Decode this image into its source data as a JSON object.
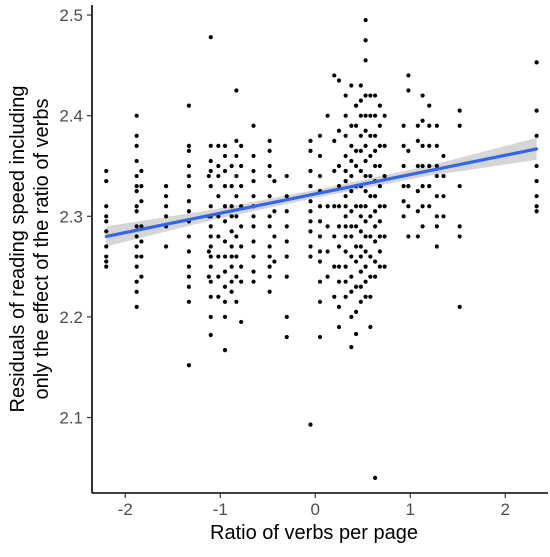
{
  "chart_data": {
    "type": "scatter",
    "xlabel": "Ratio of verbs per page",
    "ylabel_lines": [
      "Residuals of reading speed including",
      "only the effect of the ratio of verbs"
    ],
    "xlim": [
      -2.35,
      2.45
    ],
    "ylim": [
      2.025,
      2.51
    ],
    "x_ticks": [
      -2,
      -1,
      0,
      1,
      2
    ],
    "x_tick_labels": [
      "-2",
      "-1",
      "0",
      "1",
      "2"
    ],
    "y_ticks": [
      2.1,
      2.2,
      2.3,
      2.4,
      2.5
    ],
    "y_tick_labels": [
      "2.1",
      "2.2",
      "2.3",
      "2.4",
      "2.5"
    ],
    "grid": false,
    "point_color": "#000000",
    "regression": {
      "color": "#3366ee",
      "band_color": "#c8c8c8",
      "x": [
        -2.2,
        2.33
      ],
      "y": [
        2.28,
        2.367
      ],
      "band_half_width": [
        0.01,
        0.005,
        0.004,
        0.005,
        0.011
      ]
    },
    "points": [
      [
        -2.2,
        2.345
      ],
      [
        -2.2,
        2.335
      ],
      [
        -2.2,
        2.31
      ],
      [
        -2.2,
        2.3
      ],
      [
        -2.2,
        2.295
      ],
      [
        -2.2,
        2.285
      ],
      [
        -2.2,
        2.27
      ],
      [
        -2.2,
        2.26
      ],
      [
        -2.2,
        2.255
      ],
      [
        -2.2,
        2.25
      ],
      [
        -1.88,
        2.4
      ],
      [
        -1.88,
        2.38
      ],
      [
        -1.88,
        2.37
      ],
      [
        -1.88,
        2.355
      ],
      [
        -1.88,
        2.34
      ],
      [
        -1.88,
        2.33
      ],
      [
        -1.88,
        2.325
      ],
      [
        -1.88,
        2.31
      ],
      [
        -1.88,
        2.305
      ],
      [
        -1.88,
        2.29
      ],
      [
        -1.88,
        2.28
      ],
      [
        -1.88,
        2.27
      ],
      [
        -1.88,
        2.26
      ],
      [
        -1.88,
        2.25
      ],
      [
        -1.88,
        2.235
      ],
      [
        -1.88,
        2.225
      ],
      [
        -1.88,
        2.21
      ],
      [
        -1.83,
        2.345
      ],
      [
        -1.83,
        2.33
      ],
      [
        -1.83,
        2.315
      ],
      [
        -1.83,
        2.29
      ],
      [
        -1.83,
        2.275
      ],
      [
        -1.83,
        2.26
      ],
      [
        -1.83,
        2.24
      ],
      [
        -1.57,
        2.33
      ],
      [
        -1.57,
        2.32
      ],
      [
        -1.57,
        2.31
      ],
      [
        -1.57,
        2.3
      ],
      [
        -1.57,
        2.29
      ],
      [
        -1.57,
        2.27
      ],
      [
        -1.33,
        2.41
      ],
      [
        -1.33,
        2.37
      ],
      [
        -1.33,
        2.365
      ],
      [
        -1.33,
        2.35
      ],
      [
        -1.33,
        2.34
      ],
      [
        -1.33,
        2.33
      ],
      [
        -1.33,
        2.315
      ],
      [
        -1.33,
        2.305
      ],
      [
        -1.33,
        2.295
      ],
      [
        -1.33,
        2.28
      ],
      [
        -1.33,
        2.265
      ],
      [
        -1.33,
        2.25
      ],
      [
        -1.33,
        2.24
      ],
      [
        -1.33,
        2.23
      ],
      [
        -1.33,
        2.215
      ],
      [
        -1.33,
        2.152
      ],
      [
        -1.12,
        2.34
      ],
      [
        -1.12,
        2.3
      ],
      [
        -1.12,
        2.265
      ],
      [
        -1.12,
        2.24
      ],
      [
        -1.1,
        2.478
      ],
      [
        -1.1,
        2.37
      ],
      [
        -1.1,
        2.355
      ],
      [
        -1.1,
        2.345
      ],
      [
        -1.1,
        2.33
      ],
      [
        -1.1,
        2.31
      ],
      [
        -1.1,
        2.3
      ],
      [
        -1.1,
        2.29
      ],
      [
        -1.1,
        2.28
      ],
      [
        -1.1,
        2.27
      ],
      [
        -1.1,
        2.26
      ],
      [
        -1.1,
        2.25
      ],
      [
        -1.1,
        2.235
      ],
      [
        -1.1,
        2.22
      ],
      [
        -1.1,
        2.2
      ],
      [
        -1.1,
        2.182
      ],
      [
        -1.02,
        2.37
      ],
      [
        -1.02,
        2.35
      ],
      [
        -1.02,
        2.34
      ],
      [
        -1.02,
        2.32
      ],
      [
        -1.02,
        2.3
      ],
      [
        -1.02,
        2.28
      ],
      [
        -1.02,
        2.26
      ],
      [
        -1.02,
        2.24
      ],
      [
        -1.02,
        2.22
      ],
      [
        -0.95,
        2.37
      ],
      [
        -0.95,
        2.36
      ],
      [
        -0.95,
        2.345
      ],
      [
        -0.95,
        2.33
      ],
      [
        -0.95,
        2.31
      ],
      [
        -0.95,
        2.295
      ],
      [
        -0.95,
        2.275
      ],
      [
        -0.95,
        2.26
      ],
      [
        -0.95,
        2.245
      ],
      [
        -0.95,
        2.23
      ],
      [
        -0.95,
        2.215
      ],
      [
        -0.95,
        2.2
      ],
      [
        -0.95,
        2.167
      ],
      [
        -0.88,
        2.35
      ],
      [
        -0.88,
        2.33
      ],
      [
        -0.88,
        2.31
      ],
      [
        -0.88,
        2.3
      ],
      [
        -0.88,
        2.285
      ],
      [
        -0.88,
        2.27
      ],
      [
        -0.88,
        2.26
      ],
      [
        -0.88,
        2.25
      ],
      [
        -0.88,
        2.235
      ],
      [
        -0.88,
        2.225
      ],
      [
        -0.83,
        2.425
      ],
      [
        -0.83,
        2.375
      ],
      [
        -0.83,
        2.36
      ],
      [
        -0.83,
        2.34
      ],
      [
        -0.83,
        2.32
      ],
      [
        -0.83,
        2.3
      ],
      [
        -0.83,
        2.28
      ],
      [
        -0.83,
        2.26
      ],
      [
        -0.83,
        2.24
      ],
      [
        -0.83,
        2.215
      ],
      [
        -0.78,
        2.37
      ],
      [
        -0.78,
        2.35
      ],
      [
        -0.78,
        2.33
      ],
      [
        -0.78,
        2.31
      ],
      [
        -0.78,
        2.29
      ],
      [
        -0.78,
        2.27
      ],
      [
        -0.78,
        2.25
      ],
      [
        -0.78,
        2.235
      ],
      [
        -0.78,
        2.195
      ],
      [
        -0.65,
        2.39
      ],
      [
        -0.65,
        2.36
      ],
      [
        -0.65,
        2.345
      ],
      [
        -0.65,
        2.335
      ],
      [
        -0.65,
        2.32
      ],
      [
        -0.65,
        2.31
      ],
      [
        -0.65,
        2.3
      ],
      [
        -0.65,
        2.29
      ],
      [
        -0.65,
        2.275
      ],
      [
        -0.65,
        2.26
      ],
      [
        -0.65,
        2.245
      ],
      [
        -0.65,
        2.235
      ],
      [
        -0.48,
        2.375
      ],
      [
        -0.48,
        2.365
      ],
      [
        -0.48,
        2.35
      ],
      [
        -0.48,
        2.34
      ],
      [
        -0.48,
        2.32
      ],
      [
        -0.48,
        2.3
      ],
      [
        -0.48,
        2.29
      ],
      [
        -0.48,
        2.27
      ],
      [
        -0.48,
        2.26
      ],
      [
        -0.48,
        2.25
      ],
      [
        -0.48,
        2.24
      ],
      [
        -0.48,
        2.225
      ],
      [
        -0.43,
        2.335
      ],
      [
        -0.43,
        2.305
      ],
      [
        -0.43,
        2.28
      ],
      [
        -0.43,
        2.255
      ],
      [
        -0.3,
        2.34
      ],
      [
        -0.3,
        2.32
      ],
      [
        -0.3,
        2.305
      ],
      [
        -0.3,
        2.29
      ],
      [
        -0.3,
        2.275
      ],
      [
        -0.3,
        2.26
      ],
      [
        -0.3,
        2.24
      ],
      [
        -0.3,
        2.2
      ],
      [
        -0.3,
        2.18
      ],
      [
        -0.05,
        2.375
      ],
      [
        -0.05,
        2.365
      ],
      [
        -0.05,
        2.345
      ],
      [
        -0.05,
        2.33
      ],
      [
        -0.05,
        2.315
      ],
      [
        -0.05,
        2.305
      ],
      [
        -0.05,
        2.295
      ],
      [
        -0.05,
        2.285
      ],
      [
        -0.05,
        2.27
      ],
      [
        -0.05,
        2.26
      ],
      [
        -0.05,
        2.093
      ],
      [
        0.05,
        2.38
      ],
      [
        0.05,
        2.36
      ],
      [
        0.05,
        2.34
      ],
      [
        0.05,
        2.325
      ],
      [
        0.05,
        2.31
      ],
      [
        0.05,
        2.295
      ],
      [
        0.05,
        2.28
      ],
      [
        0.05,
        2.265
      ],
      [
        0.05,
        2.255
      ],
      [
        0.05,
        2.235
      ],
      [
        0.05,
        2.215
      ],
      [
        0.05,
        2.18
      ],
      [
        0.13,
        2.4
      ],
      [
        0.13,
        2.31
      ],
      [
        0.13,
        2.29
      ],
      [
        0.13,
        2.265
      ],
      [
        0.13,
        2.24
      ],
      [
        0.2,
        2.44
      ],
      [
        0.2,
        2.375
      ],
      [
        0.2,
        2.345
      ],
      [
        0.2,
        2.31
      ],
      [
        0.2,
        2.28
      ],
      [
        0.2,
        2.25
      ],
      [
        0.2,
        2.22
      ],
      [
        0.25,
        2.435
      ],
      [
        0.25,
        2.385
      ],
      [
        0.25,
        2.35
      ],
      [
        0.25,
        2.33
      ],
      [
        0.25,
        2.31
      ],
      [
        0.25,
        2.29
      ],
      [
        0.25,
        2.27
      ],
      [
        0.25,
        2.25
      ],
      [
        0.25,
        2.235
      ],
      [
        0.25,
        2.21
      ],
      [
        0.25,
        2.19
      ],
      [
        0.32,
        2.42
      ],
      [
        0.32,
        2.4
      ],
      [
        0.32,
        2.38
      ],
      [
        0.32,
        2.36
      ],
      [
        0.32,
        2.345
      ],
      [
        0.32,
        2.335
      ],
      [
        0.32,
        2.32
      ],
      [
        0.32,
        2.31
      ],
      [
        0.32,
        2.3
      ],
      [
        0.32,
        2.29
      ],
      [
        0.32,
        2.28
      ],
      [
        0.32,
        2.265
      ],
      [
        0.32,
        2.25
      ],
      [
        0.32,
        2.235
      ],
      [
        0.32,
        2.22
      ],
      [
        0.38,
        2.43
      ],
      [
        0.38,
        2.39
      ],
      [
        0.38,
        2.37
      ],
      [
        0.38,
        2.355
      ],
      [
        0.38,
        2.34
      ],
      [
        0.38,
        2.325
      ],
      [
        0.38,
        2.305
      ],
      [
        0.38,
        2.29
      ],
      [
        0.38,
        2.28
      ],
      [
        0.38,
        2.26
      ],
      [
        0.38,
        2.24
      ],
      [
        0.38,
        2.225
      ],
      [
        0.38,
        2.2
      ],
      [
        0.38,
        2.17
      ],
      [
        0.43,
        2.41
      ],
      [
        0.43,
        2.39
      ],
      [
        0.43,
        2.365
      ],
      [
        0.43,
        2.35
      ],
      [
        0.43,
        2.33
      ],
      [
        0.43,
        2.31
      ],
      [
        0.43,
        2.29
      ],
      [
        0.43,
        2.27
      ],
      [
        0.43,
        2.255
      ],
      [
        0.43,
        2.23
      ],
      [
        0.43,
        2.205
      ],
      [
        0.43,
        2.183
      ],
      [
        0.48,
        2.43
      ],
      [
        0.48,
        2.415
      ],
      [
        0.48,
        2.4
      ],
      [
        0.48,
        2.38
      ],
      [
        0.48,
        2.365
      ],
      [
        0.48,
        2.345
      ],
      [
        0.48,
        2.33
      ],
      [
        0.48,
        2.31
      ],
      [
        0.48,
        2.3
      ],
      [
        0.48,
        2.285
      ],
      [
        0.48,
        2.27
      ],
      [
        0.48,
        2.26
      ],
      [
        0.48,
        2.245
      ],
      [
        0.48,
        2.23
      ],
      [
        0.48,
        2.215
      ],
      [
        0.53,
        2.495
      ],
      [
        0.53,
        2.475
      ],
      [
        0.53,
        2.455
      ],
      [
        0.53,
        2.42
      ],
      [
        0.53,
        2.4
      ],
      [
        0.53,
        2.385
      ],
      [
        0.53,
        2.37
      ],
      [
        0.53,
        2.355
      ],
      [
        0.53,
        2.34
      ],
      [
        0.53,
        2.325
      ],
      [
        0.53,
        2.31
      ],
      [
        0.53,
        2.295
      ],
      [
        0.53,
        2.28
      ],
      [
        0.53,
        2.265
      ],
      [
        0.53,
        2.25
      ],
      [
        0.53,
        2.235
      ],
      [
        0.53,
        2.22
      ],
      [
        0.58,
        2.42
      ],
      [
        0.58,
        2.4
      ],
      [
        0.58,
        2.38
      ],
      [
        0.58,
        2.36
      ],
      [
        0.58,
        2.34
      ],
      [
        0.58,
        2.32
      ],
      [
        0.58,
        2.3
      ],
      [
        0.58,
        2.28
      ],
      [
        0.58,
        2.26
      ],
      [
        0.58,
        2.24
      ],
      [
        0.58,
        2.22
      ],
      [
        0.58,
        2.19
      ],
      [
        0.63,
        2.42
      ],
      [
        0.63,
        2.4
      ],
      [
        0.63,
        2.38
      ],
      [
        0.63,
        2.365
      ],
      [
        0.63,
        2.35
      ],
      [
        0.63,
        2.335
      ],
      [
        0.63,
        2.32
      ],
      [
        0.63,
        2.305
      ],
      [
        0.63,
        2.29
      ],
      [
        0.63,
        2.275
      ],
      [
        0.63,
        2.255
      ],
      [
        0.63,
        2.24
      ],
      [
        0.63,
        2.04
      ],
      [
        0.68,
        2.41
      ],
      [
        0.68,
        2.39
      ],
      [
        0.68,
        2.37
      ],
      [
        0.68,
        2.35
      ],
      [
        0.68,
        2.33
      ],
      [
        0.68,
        2.31
      ],
      [
        0.68,
        2.295
      ],
      [
        0.68,
        2.28
      ],
      [
        0.68,
        2.265
      ],
      [
        0.68,
        2.25
      ],
      [
        0.73,
        2.4
      ],
      [
        0.73,
        2.37
      ],
      [
        0.73,
        2.34
      ],
      [
        0.73,
        2.31
      ],
      [
        0.73,
        2.28
      ],
      [
        0.73,
        2.25
      ],
      [
        0.93,
        2.39
      ],
      [
        0.93,
        2.37
      ],
      [
        0.93,
        2.35
      ],
      [
        0.93,
        2.33
      ],
      [
        0.93,
        2.315
      ],
      [
        0.93,
        2.3
      ],
      [
        0.98,
        2.44
      ],
      [
        0.98,
        2.425
      ],
      [
        0.98,
        2.365
      ],
      [
        0.98,
        2.33
      ],
      [
        0.98,
        2.31
      ],
      [
        0.98,
        2.28
      ],
      [
        1.08,
        2.39
      ],
      [
        1.08,
        2.375
      ],
      [
        1.08,
        2.35
      ],
      [
        1.08,
        2.325
      ],
      [
        1.08,
        2.305
      ],
      [
        1.08,
        2.28
      ],
      [
        1.13,
        2.42
      ],
      [
        1.13,
        2.395
      ],
      [
        1.13,
        2.37
      ],
      [
        1.13,
        2.35
      ],
      [
        1.13,
        2.33
      ],
      [
        1.13,
        2.31
      ],
      [
        1.13,
        2.29
      ],
      [
        1.2,
        2.41
      ],
      [
        1.2,
        2.39
      ],
      [
        1.2,
        2.37
      ],
      [
        1.2,
        2.35
      ],
      [
        1.2,
        2.33
      ],
      [
        1.2,
        2.31
      ],
      [
        1.28,
        2.39
      ],
      [
        1.28,
        2.37
      ],
      [
        1.28,
        2.35
      ],
      [
        1.28,
        2.34
      ],
      [
        1.28,
        2.32
      ],
      [
        1.28,
        2.3
      ],
      [
        1.28,
        2.29
      ],
      [
        1.28,
        2.27
      ],
      [
        1.35,
        2.36
      ],
      [
        1.35,
        2.34
      ],
      [
        1.35,
        2.32
      ],
      [
        1.35,
        2.3
      ],
      [
        1.52,
        2.405
      ],
      [
        1.52,
        2.39
      ],
      [
        1.52,
        2.33
      ],
      [
        1.52,
        2.29
      ],
      [
        1.52,
        2.28
      ],
      [
        1.52,
        2.21
      ],
      [
        2.33,
        2.453
      ],
      [
        2.33,
        2.405
      ],
      [
        2.33,
        2.38
      ],
      [
        2.33,
        2.35
      ],
      [
        2.33,
        2.335
      ],
      [
        2.33,
        2.32
      ],
      [
        2.33,
        2.31
      ],
      [
        2.33,
        2.305
      ]
    ]
  }
}
